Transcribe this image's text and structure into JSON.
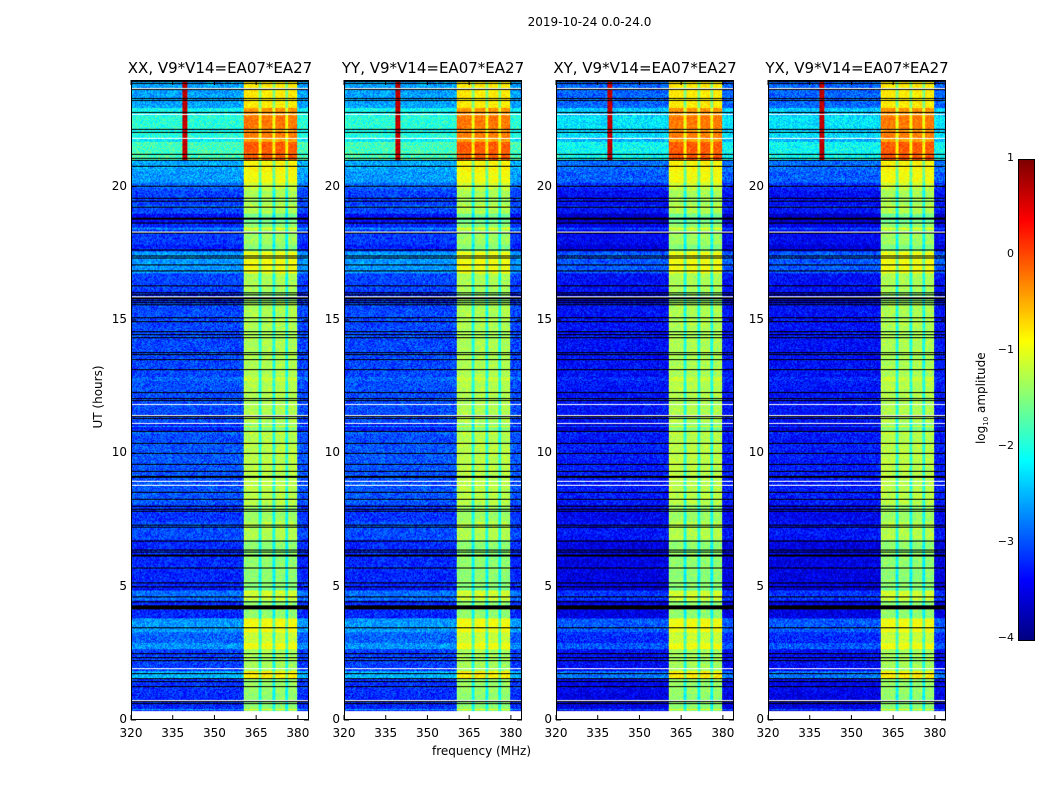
{
  "chart_data": {
    "type": "heatmap",
    "title": "2019-10-24 0.0-24.0",
    "xlabel": "frequency (MHz)",
    "ylabel": "UT (hours)",
    "xlim": [
      320,
      384
    ],
    "ylim": [
      0,
      24
    ],
    "xticks": [
      "320",
      "335",
      "350",
      "365",
      "380"
    ],
    "yticks": [
      "0",
      "5",
      "10",
      "15",
      "20"
    ],
    "panels": [
      {
        "title": "XX, V9*V14=EA07*EA27",
        "seed": 3
      },
      {
        "title": "YY, V9*V14=EA07*EA27",
        "seed": 3
      },
      {
        "title": "XY, V9*V14=EA07*EA27",
        "seed": 7
      },
      {
        "title": "YX, V9*V14=EA07*EA27",
        "seed": 7
      }
    ],
    "bright_band_mhz": [
      360.5,
      380
    ],
    "rfi_line_mhz": 339,
    "colorbar": {
      "label": "log10 amplitude",
      "label_main": "log",
      "label_sub": "10",
      "label_rest": " amplitude",
      "range": [
        -4,
        1
      ],
      "ticks": [
        "1",
        "0",
        "−1",
        "−2",
        "−3",
        "−4"
      ],
      "colormap": "jet"
    }
  }
}
